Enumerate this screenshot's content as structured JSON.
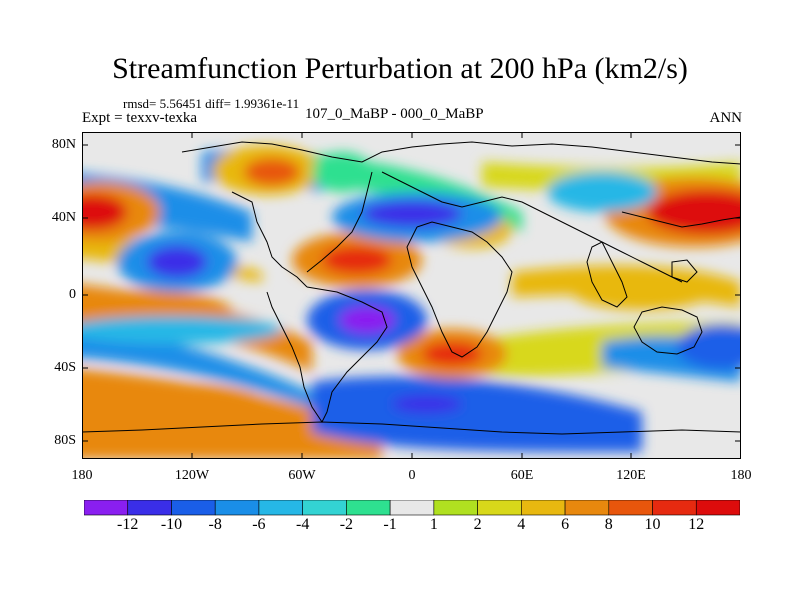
{
  "title": "Streamfunction Perturbation at 200 hPa (km2/s)",
  "stats": "rmsd= 5.56451 diff= 1.99361e-11",
  "experiment": "Expt = texxv-texka",
  "experiment_name": "107_0_MaBP - 000_0_MaBP",
  "season": "ANN",
  "lat_labels": [
    "80N",
    "40N",
    "0",
    "40S",
    "80S"
  ],
  "lon_labels": [
    "180",
    "120W",
    "60W",
    "0",
    "60E",
    "120E",
    "180"
  ],
  "colorbar": {
    "labels": [
      "-12",
      "-10",
      "-8",
      "-6",
      "-4",
      "-2",
      "-1",
      "1",
      "2",
      "4",
      "6",
      "8",
      "10",
      "12"
    ],
    "colors": [
      "#8a1ff0",
      "#3a2ee8",
      "#1a5ee8",
      "#1a8ee8",
      "#26b7e6",
      "#33d3d3",
      "#2ee090",
      "#e8e8e8",
      "#b0e020",
      "#d8d81a",
      "#e8b810",
      "#e8880e",
      "#e8560c",
      "#e62a10",
      "#dd0c0c"
    ]
  }
}
